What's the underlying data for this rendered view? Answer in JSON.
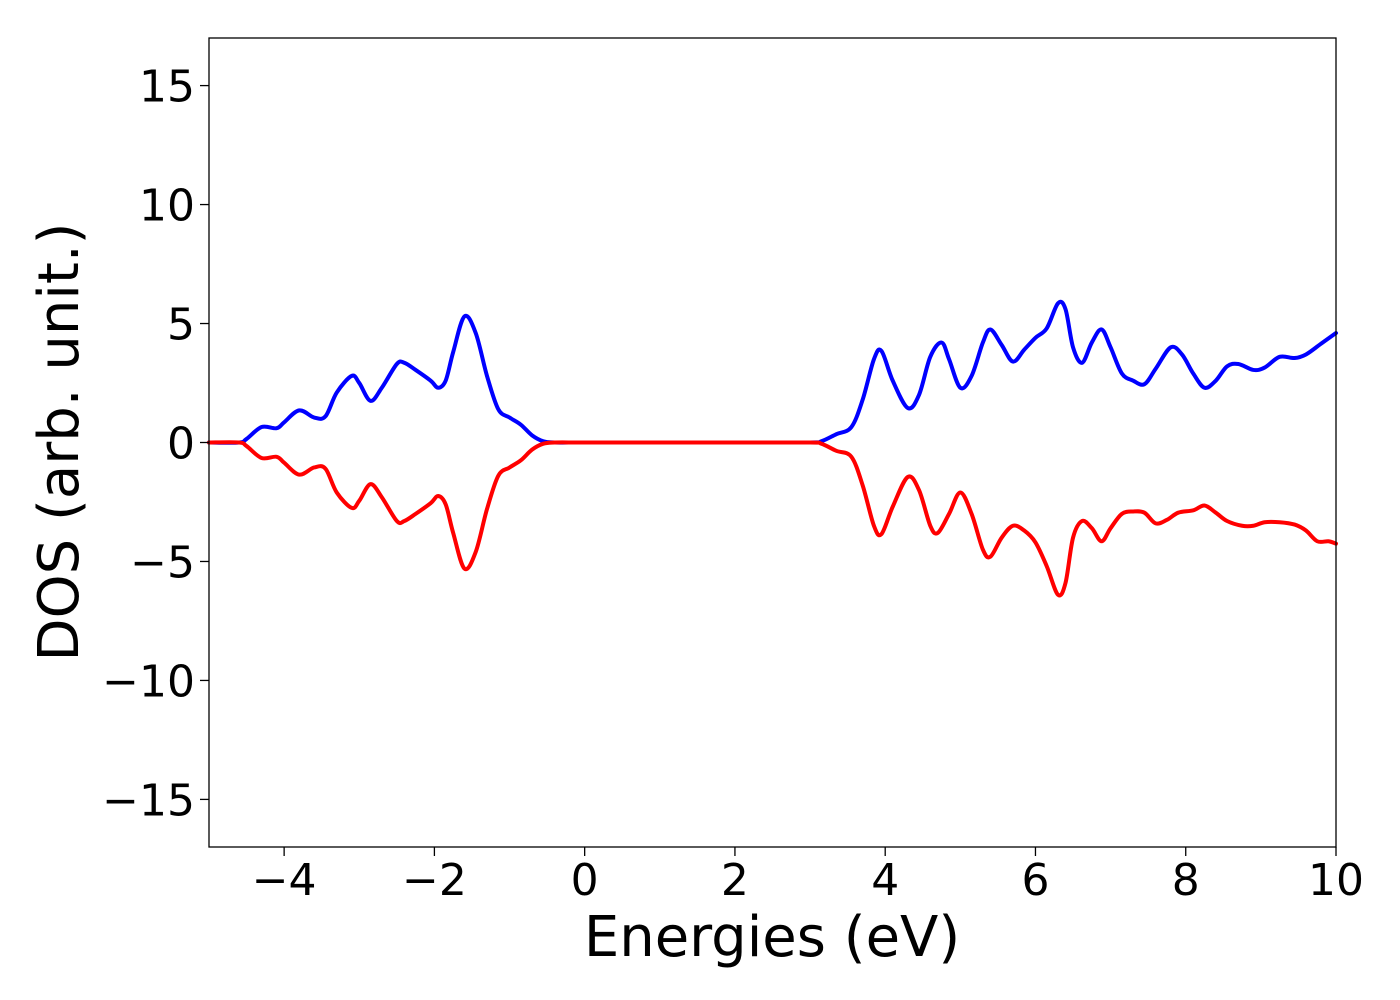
{
  "chart_data": {
    "type": "line",
    "title": "",
    "xlabel": "Energies (eV)",
    "ylabel": "DOS (arb. unit.)",
    "xlim": [
      -5,
      10
    ],
    "ylim": [
      -17,
      17
    ],
    "x_ticks": [
      -4,
      -2,
      0,
      2,
      4,
      6,
      8,
      10
    ],
    "x_tick_labels": [
      "−4",
      "−2",
      "0",
      "2",
      "4",
      "6",
      "8",
      "10"
    ],
    "y_ticks": [
      -15,
      -10,
      -5,
      0,
      5,
      10,
      15
    ],
    "y_tick_labels": [
      "−15",
      "−10",
      "−5",
      "0",
      "5",
      "10",
      "15"
    ],
    "grid": false,
    "series": [
      {
        "color": "#0000ff",
        "points": [
          [
            -5.0,
            0.0
          ],
          [
            -4.6,
            0.0
          ],
          [
            -4.5,
            0.15
          ],
          [
            -4.3,
            0.65
          ],
          [
            -4.1,
            0.6
          ],
          [
            -4.0,
            0.85
          ],
          [
            -3.8,
            1.35
          ],
          [
            -3.6,
            1.05
          ],
          [
            -3.45,
            1.1
          ],
          [
            -3.3,
            2.1
          ],
          [
            -3.1,
            2.8
          ],
          [
            -3.0,
            2.5
          ],
          [
            -2.85,
            1.75
          ],
          [
            -2.7,
            2.3
          ],
          [
            -2.5,
            3.3
          ],
          [
            -2.4,
            3.35
          ],
          [
            -2.25,
            3.05
          ],
          [
            -2.05,
            2.6
          ],
          [
            -1.95,
            2.3
          ],
          [
            -1.85,
            2.6
          ],
          [
            -1.75,
            3.8
          ],
          [
            -1.6,
            5.3
          ],
          [
            -1.45,
            4.6
          ],
          [
            -1.3,
            2.8
          ],
          [
            -1.15,
            1.4
          ],
          [
            -1.0,
            1.05
          ],
          [
            -0.85,
            0.75
          ],
          [
            -0.7,
            0.3
          ],
          [
            -0.55,
            0.05
          ],
          [
            -0.4,
            0.0
          ],
          [
            0.0,
            0.0
          ],
          [
            1.0,
            0.0
          ],
          [
            2.0,
            0.0
          ],
          [
            3.0,
            0.0
          ],
          [
            3.15,
            0.05
          ],
          [
            3.35,
            0.35
          ],
          [
            3.55,
            0.65
          ],
          [
            3.7,
            1.8
          ],
          [
            3.85,
            3.5
          ],
          [
            3.95,
            3.85
          ],
          [
            4.1,
            2.6
          ],
          [
            4.3,
            1.45
          ],
          [
            4.45,
            2.0
          ],
          [
            4.6,
            3.6
          ],
          [
            4.75,
            4.2
          ],
          [
            4.85,
            3.5
          ],
          [
            5.0,
            2.3
          ],
          [
            5.15,
            2.8
          ],
          [
            5.3,
            4.2
          ],
          [
            5.4,
            4.75
          ],
          [
            5.55,
            4.1
          ],
          [
            5.7,
            3.4
          ],
          [
            5.85,
            3.9
          ],
          [
            6.0,
            4.4
          ],
          [
            6.15,
            4.8
          ],
          [
            6.3,
            5.85
          ],
          [
            6.4,
            5.6
          ],
          [
            6.5,
            4.0
          ],
          [
            6.62,
            3.35
          ],
          [
            6.75,
            4.2
          ],
          [
            6.88,
            4.75
          ],
          [
            7.0,
            4.0
          ],
          [
            7.15,
            2.9
          ],
          [
            7.3,
            2.6
          ],
          [
            7.45,
            2.45
          ],
          [
            7.6,
            3.1
          ],
          [
            7.8,
            4.0
          ],
          [
            7.95,
            3.7
          ],
          [
            8.1,
            2.9
          ],
          [
            8.25,
            2.3
          ],
          [
            8.4,
            2.6
          ],
          [
            8.55,
            3.2
          ],
          [
            8.7,
            3.3
          ],
          [
            8.9,
            3.05
          ],
          [
            9.05,
            3.15
          ],
          [
            9.25,
            3.6
          ],
          [
            9.45,
            3.55
          ],
          [
            9.6,
            3.7
          ],
          [
            9.8,
            4.15
          ],
          [
            10.0,
            4.6
          ]
        ]
      },
      {
        "color": "#ff0000",
        "points": [
          [
            -5.0,
            0.0
          ],
          [
            -4.6,
            0.0
          ],
          [
            -4.5,
            -0.15
          ],
          [
            -4.3,
            -0.65
          ],
          [
            -4.1,
            -0.6
          ],
          [
            -4.0,
            -0.85
          ],
          [
            -3.8,
            -1.35
          ],
          [
            -3.6,
            -1.05
          ],
          [
            -3.45,
            -1.1
          ],
          [
            -3.3,
            -2.1
          ],
          [
            -3.1,
            -2.75
          ],
          [
            -3.0,
            -2.45
          ],
          [
            -2.85,
            -1.75
          ],
          [
            -2.7,
            -2.3
          ],
          [
            -2.5,
            -3.3
          ],
          [
            -2.4,
            -3.3
          ],
          [
            -2.25,
            -3.0
          ],
          [
            -2.05,
            -2.55
          ],
          [
            -1.95,
            -2.25
          ],
          [
            -1.85,
            -2.6
          ],
          [
            -1.75,
            -3.8
          ],
          [
            -1.6,
            -5.3
          ],
          [
            -1.45,
            -4.6
          ],
          [
            -1.3,
            -2.8
          ],
          [
            -1.15,
            -1.4
          ],
          [
            -1.0,
            -1.05
          ],
          [
            -0.85,
            -0.75
          ],
          [
            -0.7,
            -0.3
          ],
          [
            -0.55,
            -0.05
          ],
          [
            -0.4,
            0.0
          ],
          [
            0.0,
            0.0
          ],
          [
            1.0,
            0.0
          ],
          [
            2.0,
            0.0
          ],
          [
            3.0,
            0.0
          ],
          [
            3.15,
            -0.05
          ],
          [
            3.35,
            -0.35
          ],
          [
            3.55,
            -0.6
          ],
          [
            3.7,
            -1.8
          ],
          [
            3.85,
            -3.5
          ],
          [
            3.95,
            -3.85
          ],
          [
            4.1,
            -2.7
          ],
          [
            4.3,
            -1.45
          ],
          [
            4.45,
            -2.0
          ],
          [
            4.6,
            -3.5
          ],
          [
            4.7,
            -3.8
          ],
          [
            4.85,
            -3.0
          ],
          [
            5.0,
            -2.1
          ],
          [
            5.15,
            -3.0
          ],
          [
            5.3,
            -4.5
          ],
          [
            5.4,
            -4.8
          ],
          [
            5.55,
            -4.0
          ],
          [
            5.7,
            -3.5
          ],
          [
            5.85,
            -3.7
          ],
          [
            6.0,
            -4.2
          ],
          [
            6.15,
            -5.2
          ],
          [
            6.3,
            -6.4
          ],
          [
            6.4,
            -5.9
          ],
          [
            6.5,
            -4.0
          ],
          [
            6.62,
            -3.3
          ],
          [
            6.75,
            -3.6
          ],
          [
            6.88,
            -4.15
          ],
          [
            7.0,
            -3.6
          ],
          [
            7.15,
            -3.0
          ],
          [
            7.3,
            -2.9
          ],
          [
            7.45,
            -2.95
          ],
          [
            7.6,
            -3.4
          ],
          [
            7.75,
            -3.25
          ],
          [
            7.9,
            -2.95
          ],
          [
            8.1,
            -2.85
          ],
          [
            8.25,
            -2.65
          ],
          [
            8.4,
            -2.95
          ],
          [
            8.55,
            -3.3
          ],
          [
            8.75,
            -3.5
          ],
          [
            8.9,
            -3.5
          ],
          [
            9.05,
            -3.35
          ],
          [
            9.25,
            -3.35
          ],
          [
            9.45,
            -3.45
          ],
          [
            9.6,
            -3.7
          ],
          [
            9.75,
            -4.15
          ],
          [
            9.9,
            -4.15
          ],
          [
            10.0,
            -4.25
          ]
        ]
      }
    ]
  }
}
